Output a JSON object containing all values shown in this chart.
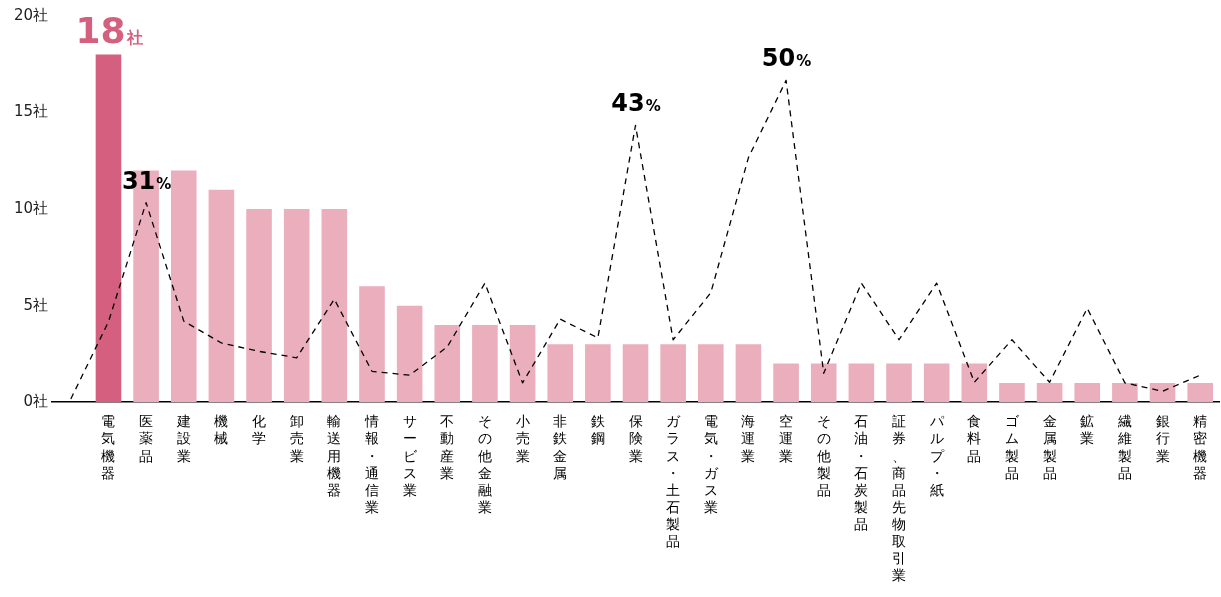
{
  "chart_data": {
    "type": "bar",
    "categories": [
      null,
      "電気機器",
      "医薬品",
      "建設業",
      "機械",
      "化学",
      "卸売業",
      "輸送用機器",
      "情報・通信業",
      "サービス業",
      "不動産業",
      "その他金融業",
      "小売業",
      "非鉄金属",
      "鉄鋼",
      "保険業",
      "ガラス・土石製品",
      "電気・ガス業",
      "海運業",
      "空運業",
      "その他製品",
      "石油・石炭製品",
      "証券、商品先物取引業",
      "パルプ・紙",
      "食料品",
      "ゴム製品",
      "金属製品",
      "鉱業",
      "繊維製品",
      "銀行業",
      "精密機器"
    ],
    "series": [
      {
        "colors": [
          "#eaaebd",
          "#d45f7e",
          "#eaaebd",
          "#eaaebd",
          "#eaaebd",
          "#eaaebd",
          "#eaaebd",
          "#eaaebd",
          "#eaaebd",
          "#eaaebd",
          "#eaaebd",
          "#eaaebd",
          "#eaaebd",
          "#eaaebd",
          "#eaaebd",
          "#eaaebd",
          "#eaaebd",
          "#eaaebd",
          "#eaaebd",
          "#eaaebd",
          "#eaaebd",
          "#eaaebd",
          "#eaaebd",
          "#eaaebd",
          "#eaaebd",
          "#eaaebd",
          "#eaaebd",
          "#eaaebd",
          "#eaaebd",
          "#eaaebd",
          "#eaaebd"
        ],
        "values": [
          null,
          18,
          12,
          12,
          11,
          10,
          10,
          10,
          6,
          5,
          4,
          4,
          4,
          3,
          3,
          3,
          3,
          3,
          3,
          2,
          2,
          2,
          2,
          2,
          2,
          1,
          1,
          1,
          1,
          1,
          1
        ],
        "value_labels": [
          null,
          "18社",
          null,
          null,
          null,
          null,
          null,
          null,
          null,
          null,
          null,
          null,
          null,
          null,
          null,
          null,
          null,
          null,
          null,
          null,
          null,
          null,
          null,
          null,
          null,
          null,
          null,
          null,
          null,
          null,
          null
        ]
      },
      {
        "type": "line",
        "axis": "y2",
        "color": "#000000",
        "line_style": "dashed",
        "marker": "none",
        "values": [
          0.5,
          12.5,
          31,
          12.6,
          9.2,
          7.9,
          6.9,
          16,
          4.8,
          4.2,
          8.6,
          18.5,
          3,
          12.9,
          10,
          43,
          9.7,
          17,
          38,
          50,
          4.5,
          18.5,
          9.7,
          18.5,
          3.1,
          9.7,
          3.1,
          14.6,
          3,
          1.7,
          4.2
        ],
        "value_labels": [
          null,
          null,
          "31%",
          null,
          null,
          null,
          null,
          null,
          null,
          null,
          null,
          null,
          null,
          null,
          null,
          "43%",
          null,
          null,
          null,
          "50%",
          null,
          null,
          null,
          null,
          null,
          null,
          null,
          null,
          null,
          null,
          null
        ]
      }
    ],
    "ylim": [
      0,
      20
    ],
    "yticks": [
      {
        "value": 0,
        "label": "0社"
      },
      {
        "value": 5,
        "label": "5社"
      },
      {
        "value": 10,
        "label": "10社"
      },
      {
        "value": 15,
        "label": "15社"
      },
      {
        "value": 20,
        "label": "20社"
      }
    ],
    "grid": false,
    "legend": false
  }
}
